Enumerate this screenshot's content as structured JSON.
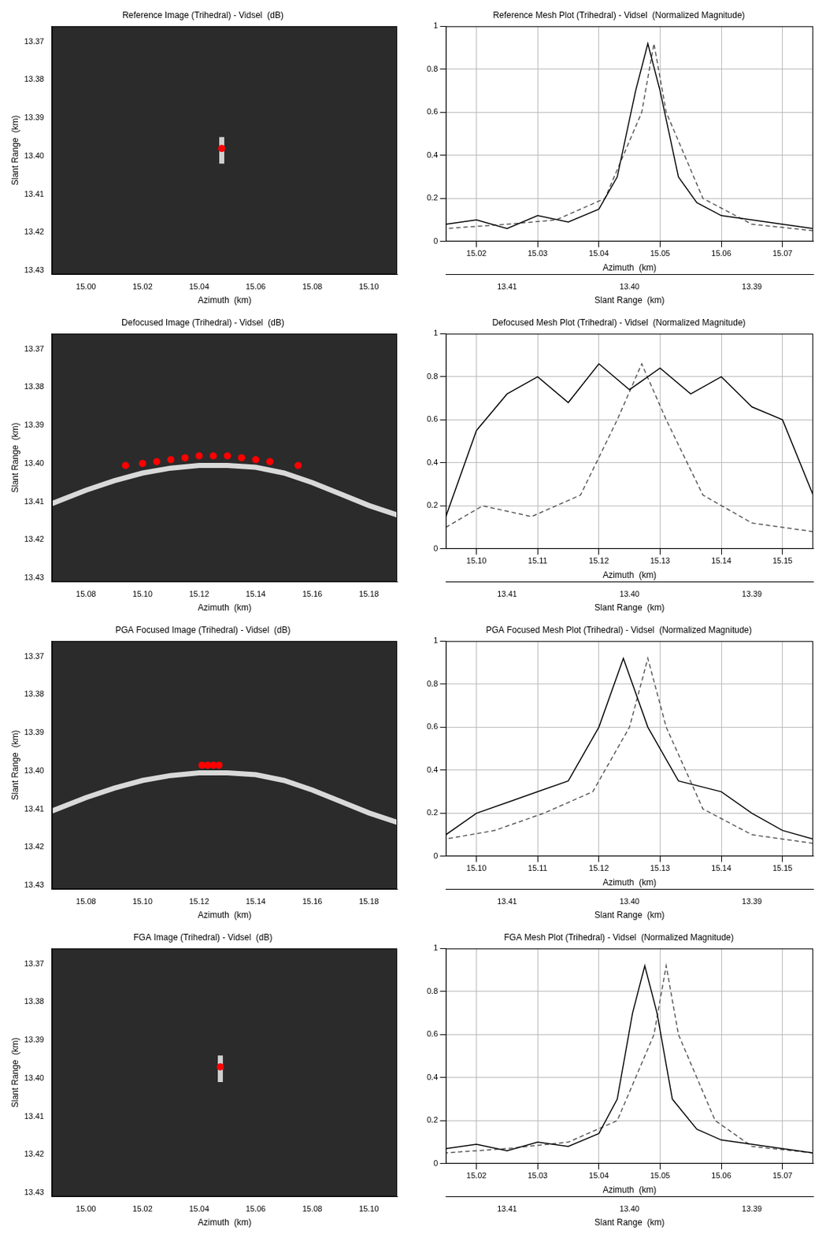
{
  "chart_data": [
    {
      "type": "scatter",
      "title": "Reference Image (Trihedral) - Vidsel  (dB)",
      "x_label": "Azimuth  (km)",
      "y_label": "Slant Range  (km)",
      "grid": false,
      "xlim": [
        14.988,
        15.11
      ],
      "xticks": [
        {
          "value": 15,
          "label": "15.00"
        },
        15.02,
        15.04,
        15.06,
        15.08,
        {
          "value": 15.1,
          "label": "15.10"
        }
      ],
      "ylim": [
        13.366,
        13.431
      ],
      "yticks": [
        13.37,
        13.38,
        13.39,
        {
          "value": 13.4,
          "label": "13.40"
        },
        13.41,
        13.42,
        13.43
      ],
      "series": [
        {
          "type": "scatter",
          "marker": "circle",
          "color": "#ff0000",
          "x": [
            15.048
          ],
          "values": [
            13.398
          ]
        },
        {
          "type": "line",
          "color": "#cfcfcf",
          "x": [
            15.048,
            15.048
          ],
          "values": [
            13.395,
            13.402
          ]
        }
      ]
    },
    {
      "type": "line",
      "title": "Reference Mesh Plot (Trihedral) - Vidsel  (Normalized Magnitude)",
      "x_label": "Azimuth  (km)",
      "x2_label": "Slant Range  (km)",
      "grid": true,
      "xlim": [
        15.015,
        15.075
      ],
      "xticks": [
        15.02,
        15.03,
        15.04,
        15.05,
        15.06,
        15.07
      ],
      "x2lim": [
        13.385,
        13.415
      ],
      "x2ticks": [
        13.39,
        {
          "value": 13.4,
          "label": "13.40"
        },
        13.41
      ],
      "ylim": [
        0,
        1
      ],
      "yticks": [
        0,
        0.2,
        0.4,
        0.6,
        0.8,
        1
      ],
      "series": [
        {
          "type": "line",
          "color": "#000000",
          "line_style": "solid",
          "x": [
            15.015,
            15.02,
            15.025,
            15.03,
            15.035,
            15.04,
            15.043,
            15.046,
            15.048,
            15.05,
            15.053,
            15.056,
            15.06,
            15.065,
            15.07,
            15.075
          ],
          "values": [
            0.08,
            0.1,
            0.06,
            0.12,
            0.09,
            0.15,
            0.3,
            0.7,
            0.92,
            0.7,
            0.3,
            0.18,
            0.12,
            0.1,
            0.08,
            0.06
          ]
        },
        {
          "type": "line",
          "color": "#555555",
          "line_style": "dashed",
          "axis": "x2",
          "x": [
            13.385,
            13.39,
            13.394,
            13.397,
            13.398,
            13.399,
            13.402,
            13.406,
            13.41,
            13.415
          ],
          "values": [
            0.05,
            0.08,
            0.2,
            0.6,
            0.92,
            0.6,
            0.2,
            0.1,
            0.08,
            0.06
          ]
        }
      ]
    },
    {
      "type": "scatter",
      "title": "Defocused Image (Trihedral) - Vidsel  (dB)",
      "x_label": "Azimuth  (km)",
      "y_label": "Slant Range  (km)",
      "grid": false,
      "xlim": [
        15.068,
        15.19
      ],
      "xticks": [
        15.08,
        {
          "value": 15.1,
          "label": "15.10"
        },
        15.12,
        15.14,
        15.16,
        15.18
      ],
      "ylim": [
        13.366,
        13.431
      ],
      "yticks": [
        13.37,
        13.38,
        13.39,
        {
          "value": 13.4,
          "label": "13.40"
        },
        13.41,
        13.42,
        13.43
      ],
      "series": [
        {
          "type": "scatter",
          "marker": "circle",
          "color": "#ff0000",
          "x": [
            15.094,
            15.1,
            15.105,
            15.11,
            15.115,
            15.12,
            15.125,
            15.13,
            15.135,
            15.14,
            15.145,
            15.155
          ],
          "values": [
            13.4005,
            13.4,
            13.3995,
            13.399,
            13.3985,
            13.398,
            13.398,
            13.398,
            13.3985,
            13.399,
            13.3995,
            13.4005
          ]
        },
        {
          "type": "line",
          "color": "#d9d9d9",
          "x": [
            15.068,
            15.08,
            15.09,
            15.1,
            15.11,
            15.12,
            15.13,
            15.14,
            15.15,
            15.16,
            15.17,
            15.18,
            15.19
          ],
          "values": [
            13.4105,
            13.407,
            13.4045,
            13.4025,
            13.4012,
            13.4005,
            13.4005,
            13.401,
            13.4025,
            13.405,
            13.408,
            13.411,
            13.4135
          ]
        }
      ]
    },
    {
      "type": "line",
      "title": "Defocused Mesh Plot (Trihedral) - Vidsel  (Normalized Magnitude)",
      "x_label": "Azimuth  (km)",
      "x2_label": "Slant Range  (km)",
      "grid": true,
      "xlim": [
        15.095,
        15.155
      ],
      "xticks": [
        {
          "value": 15.1,
          "label": "15.10"
        },
        15.11,
        15.12,
        15.13,
        15.14,
        15.15
      ],
      "x2lim": [
        13.385,
        13.415
      ],
      "x2ticks": [
        13.39,
        {
          "value": 13.4,
          "label": "13.40"
        },
        13.41
      ],
      "ylim": [
        0,
        1
      ],
      "yticks": [
        0,
        0.2,
        0.4,
        0.6,
        0.8,
        1
      ],
      "series": [
        {
          "type": "line",
          "color": "#000000",
          "line_style": "solid",
          "x": [
            15.095,
            15.1,
            15.105,
            15.11,
            15.115,
            15.12,
            15.125,
            15.13,
            15.135,
            15.14,
            15.145,
            15.15,
            15.155
          ],
          "values": [
            0.15,
            0.55,
            0.72,
            0.8,
            0.68,
            0.86,
            0.74,
            0.84,
            0.72,
            0.8,
            0.66,
            0.6,
            0.25
          ]
        },
        {
          "type": "line",
          "color": "#555555",
          "line_style": "dashed",
          "axis": "x2",
          "x": [
            13.385,
            13.39,
            13.394,
            13.397,
            13.399,
            13.401,
            13.404,
            13.408,
            13.412,
            13.415
          ],
          "values": [
            0.08,
            0.12,
            0.25,
            0.6,
            0.86,
            0.6,
            0.25,
            0.15,
            0.2,
            0.1
          ]
        }
      ]
    },
    {
      "type": "scatter",
      "title": "PGA Focused Image (Trihedral) - Vidsel  (dB)",
      "x_label": "Azimuth  (km)",
      "y_label": "Slant Range  (km)",
      "grid": false,
      "xlim": [
        15.068,
        15.19
      ],
      "xticks": [
        15.08,
        {
          "value": 15.1,
          "label": "15.10"
        },
        15.12,
        15.14,
        15.16,
        15.18
      ],
      "ylim": [
        13.366,
        13.431
      ],
      "yticks": [
        13.37,
        13.38,
        13.39,
        {
          "value": 13.4,
          "label": "13.40"
        },
        13.41,
        13.42,
        13.43
      ],
      "series": [
        {
          "type": "scatter",
          "marker": "circle",
          "color": "#ff0000",
          "x": [
            15.121,
            15.123,
            15.125,
            15.127
          ],
          "values": [
            13.3985,
            13.3985,
            13.3985,
            13.3985
          ]
        },
        {
          "type": "line",
          "color": "#d9d9d9",
          "x": [
            15.068,
            15.08,
            15.09,
            15.1,
            15.11,
            15.12,
            15.13,
            15.14,
            15.15,
            15.16,
            15.17,
            15.18,
            15.19
          ],
          "values": [
            13.4105,
            13.407,
            13.4045,
            13.4025,
            13.4012,
            13.4005,
            13.4005,
            13.401,
            13.4025,
            13.405,
            13.408,
            13.411,
            13.4135
          ]
        }
      ]
    },
    {
      "type": "line",
      "title": "PGA Focused Mesh Plot (Trihedral) - Vidsel  (Normalized Magnitude)",
      "x_label": "Azimuth  (km)",
      "x2_label": "Slant Range  (km)",
      "grid": true,
      "xlim": [
        15.095,
        15.155
      ],
      "xticks": [
        {
          "value": 15.1,
          "label": "15.10"
        },
        15.11,
        15.12,
        15.13,
        15.14,
        15.15
      ],
      "x2lim": [
        13.385,
        13.415
      ],
      "x2ticks": [
        13.39,
        {
          "value": 13.4,
          "label": "13.40"
        },
        13.41
      ],
      "ylim": [
        0,
        1
      ],
      "yticks": [
        0,
        0.2,
        0.4,
        0.6,
        0.8,
        1
      ],
      "series": [
        {
          "type": "line",
          "color": "#000000",
          "line_style": "solid",
          "x": [
            15.095,
            15.1,
            15.105,
            15.11,
            15.115,
            15.12,
            15.124,
            15.128,
            15.133,
            15.14,
            15.145,
            15.15,
            15.155
          ],
          "values": [
            0.1,
            0.2,
            0.25,
            0.3,
            0.35,
            0.6,
            0.92,
            0.6,
            0.35,
            0.3,
            0.2,
            0.12,
            0.08
          ]
        },
        {
          "type": "line",
          "color": "#555555",
          "line_style": "dashed",
          "axis": "x2",
          "x": [
            13.385,
            13.39,
            13.394,
            13.397,
            13.3985,
            13.4,
            13.403,
            13.407,
            13.411,
            13.415
          ],
          "values": [
            0.06,
            0.1,
            0.22,
            0.6,
            0.92,
            0.6,
            0.3,
            0.2,
            0.12,
            0.08
          ]
        }
      ]
    },
    {
      "type": "scatter",
      "title": "FGA Image (Trihedral) - Vidsel  (dB)",
      "x_label": "Azimuth  (km)",
      "y_label": "Slant Range  (km)",
      "grid": false,
      "xlim": [
        14.988,
        15.11
      ],
      "xticks": [
        {
          "value": 15,
          "label": "15.00"
        },
        15.02,
        15.04,
        15.06,
        15.08,
        {
          "value": 15.1,
          "label": "15.10"
        }
      ],
      "ylim": [
        13.366,
        13.431
      ],
      "yticks": [
        13.37,
        13.38,
        13.39,
        {
          "value": 13.4,
          "label": "13.40"
        },
        13.41,
        13.42,
        13.43
      ],
      "series": [
        {
          "type": "scatter",
          "marker": "circle",
          "color": "#ff0000",
          "x": [
            15.0475
          ],
          "values": [
            13.397
          ]
        },
        {
          "type": "line",
          "color": "#cfcfcf",
          "x": [
            15.0475,
            15.0475
          ],
          "values": [
            13.394,
            13.401
          ]
        }
      ]
    },
    {
      "type": "line",
      "title": "FGA Mesh Plot (Trihedral) - Vidsel  (Normalized Magnitude)",
      "x_label": "Azimuth  (km)",
      "x2_label": "Slant Range  (km)",
      "grid": true,
      "xlim": [
        15.015,
        15.075
      ],
      "xticks": [
        15.02,
        15.03,
        15.04,
        15.05,
        15.06,
        15.07
      ],
      "x2lim": [
        13.385,
        13.415
      ],
      "x2ticks": [
        13.39,
        {
          "value": 13.4,
          "label": "13.40"
        },
        13.41
      ],
      "ylim": [
        0,
        1
      ],
      "yticks": [
        0,
        0.2,
        0.4,
        0.6,
        0.8,
        1
      ],
      "series": [
        {
          "type": "line",
          "color": "#000000",
          "line_style": "solid",
          "x": [
            15.015,
            15.02,
            15.025,
            15.03,
            15.035,
            15.04,
            15.043,
            15.0455,
            15.0475,
            15.0495,
            15.052,
            15.056,
            15.06,
            15.065,
            15.07,
            15.075
          ],
          "values": [
            0.07,
            0.09,
            0.06,
            0.1,
            0.08,
            0.14,
            0.3,
            0.7,
            0.92,
            0.7,
            0.3,
            0.16,
            0.11,
            0.09,
            0.07,
            0.05
          ]
        },
        {
          "type": "line",
          "color": "#555555",
          "line_style": "dashed",
          "axis": "x2",
          "x": [
            13.385,
            13.39,
            13.393,
            13.396,
            13.397,
            13.398,
            13.401,
            13.405,
            13.41,
            13.415
          ],
          "values": [
            0.05,
            0.08,
            0.2,
            0.6,
            0.92,
            0.6,
            0.2,
            0.1,
            0.07,
            0.05
          ]
        }
      ]
    }
  ]
}
